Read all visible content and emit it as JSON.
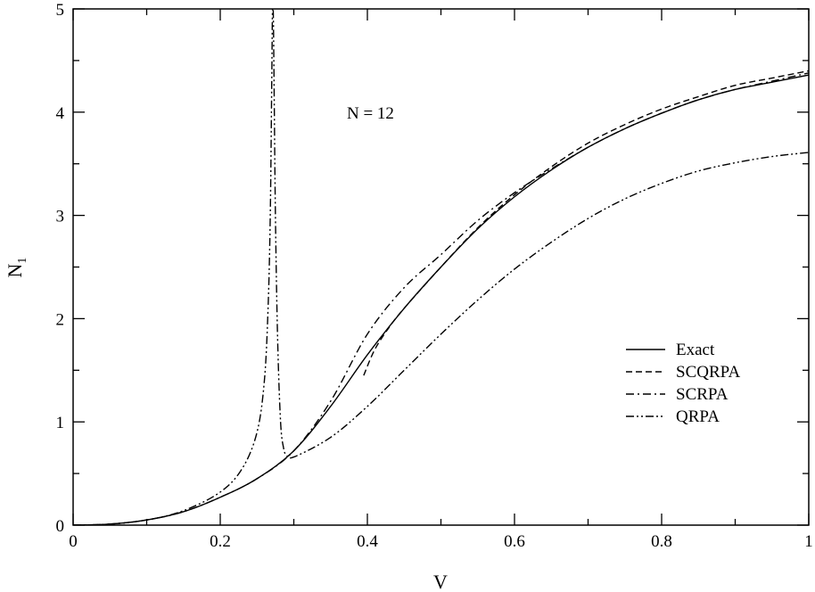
{
  "chart_data": {
    "type": "line",
    "xlabel": "V",
    "ylabel": "N",
    "ylabel_sub": "1",
    "xlim": [
      0,
      1
    ],
    "ylim": [
      0,
      5
    ],
    "xticks": [
      "0",
      "0.2",
      "0.4",
      "0.6",
      "0.8",
      "1"
    ],
    "yticks": [
      "0",
      "1",
      "2",
      "3",
      "4",
      "5"
    ],
    "grid": false,
    "legend_position": "right",
    "annotation": "N = 12",
    "series": [
      {
        "name": "Exact",
        "style": "solid",
        "x": [
          0.0,
          0.05,
          0.1,
          0.15,
          0.2,
          0.25,
          0.3,
          0.35,
          0.4,
          0.45,
          0.5,
          0.55,
          0.6,
          0.65,
          0.7,
          0.75,
          0.8,
          0.85,
          0.9,
          0.95,
          1.0
        ],
        "y": [
          0.0,
          0.01,
          0.05,
          0.13,
          0.27,
          0.45,
          0.72,
          1.15,
          1.65,
          2.1,
          2.5,
          2.87,
          3.18,
          3.44,
          3.66,
          3.84,
          3.99,
          4.12,
          4.22,
          4.29,
          4.36
        ]
      },
      {
        "name": "SCQRPA",
        "style": "dashed",
        "x": [
          0.395,
          0.41,
          0.43,
          0.45,
          0.5,
          0.55,
          0.6,
          0.65,
          0.7,
          0.75,
          0.8,
          0.85,
          0.9,
          0.95,
          1.0
        ],
        "y": [
          1.45,
          1.7,
          1.92,
          2.1,
          2.5,
          2.88,
          3.2,
          3.47,
          3.7,
          3.88,
          4.03,
          4.15,
          4.26,
          4.33,
          4.4
        ]
      },
      {
        "name": "SCRPA",
        "style": "dash-dot",
        "x": [
          0.0,
          0.05,
          0.1,
          0.15,
          0.2,
          0.25,
          0.3,
          0.35,
          0.4,
          0.45,
          0.5,
          0.55,
          0.6,
          0.65,
          0.7,
          0.75,
          0.8,
          0.85,
          0.9,
          0.95,
          1.0
        ],
        "y": [
          0.0,
          0.01,
          0.05,
          0.13,
          0.27,
          0.45,
          0.72,
          1.2,
          1.85,
          2.3,
          2.62,
          2.95,
          3.22,
          3.45,
          3.66,
          3.84,
          3.99,
          4.12,
          4.22,
          4.3,
          4.38
        ]
      },
      {
        "name": "QRPA",
        "style": "dash-dot-dot",
        "x": [
          0.0,
          0.05,
          0.1,
          0.15,
          0.2,
          0.23,
          0.25,
          0.26,
          0.265,
          0.268,
          0.27,
          0.271,
          0.272,
          0.273,
          0.275,
          0.278,
          0.282,
          0.286,
          0.29,
          0.3,
          0.35,
          0.4,
          0.45,
          0.5,
          0.55,
          0.6,
          0.65,
          0.7,
          0.75,
          0.8,
          0.85,
          0.9,
          0.95,
          1.0
        ],
        "y": [
          0.0,
          0.01,
          0.05,
          0.14,
          0.32,
          0.55,
          0.9,
          1.4,
          2.1,
          3.0,
          4.3,
          5.0,
          5.0,
          4.4,
          3.0,
          1.8,
          1.0,
          0.75,
          0.68,
          0.66,
          0.85,
          1.15,
          1.5,
          1.85,
          2.18,
          2.48,
          2.74,
          2.97,
          3.16,
          3.31,
          3.43,
          3.51,
          3.57,
          3.61
        ]
      }
    ]
  }
}
